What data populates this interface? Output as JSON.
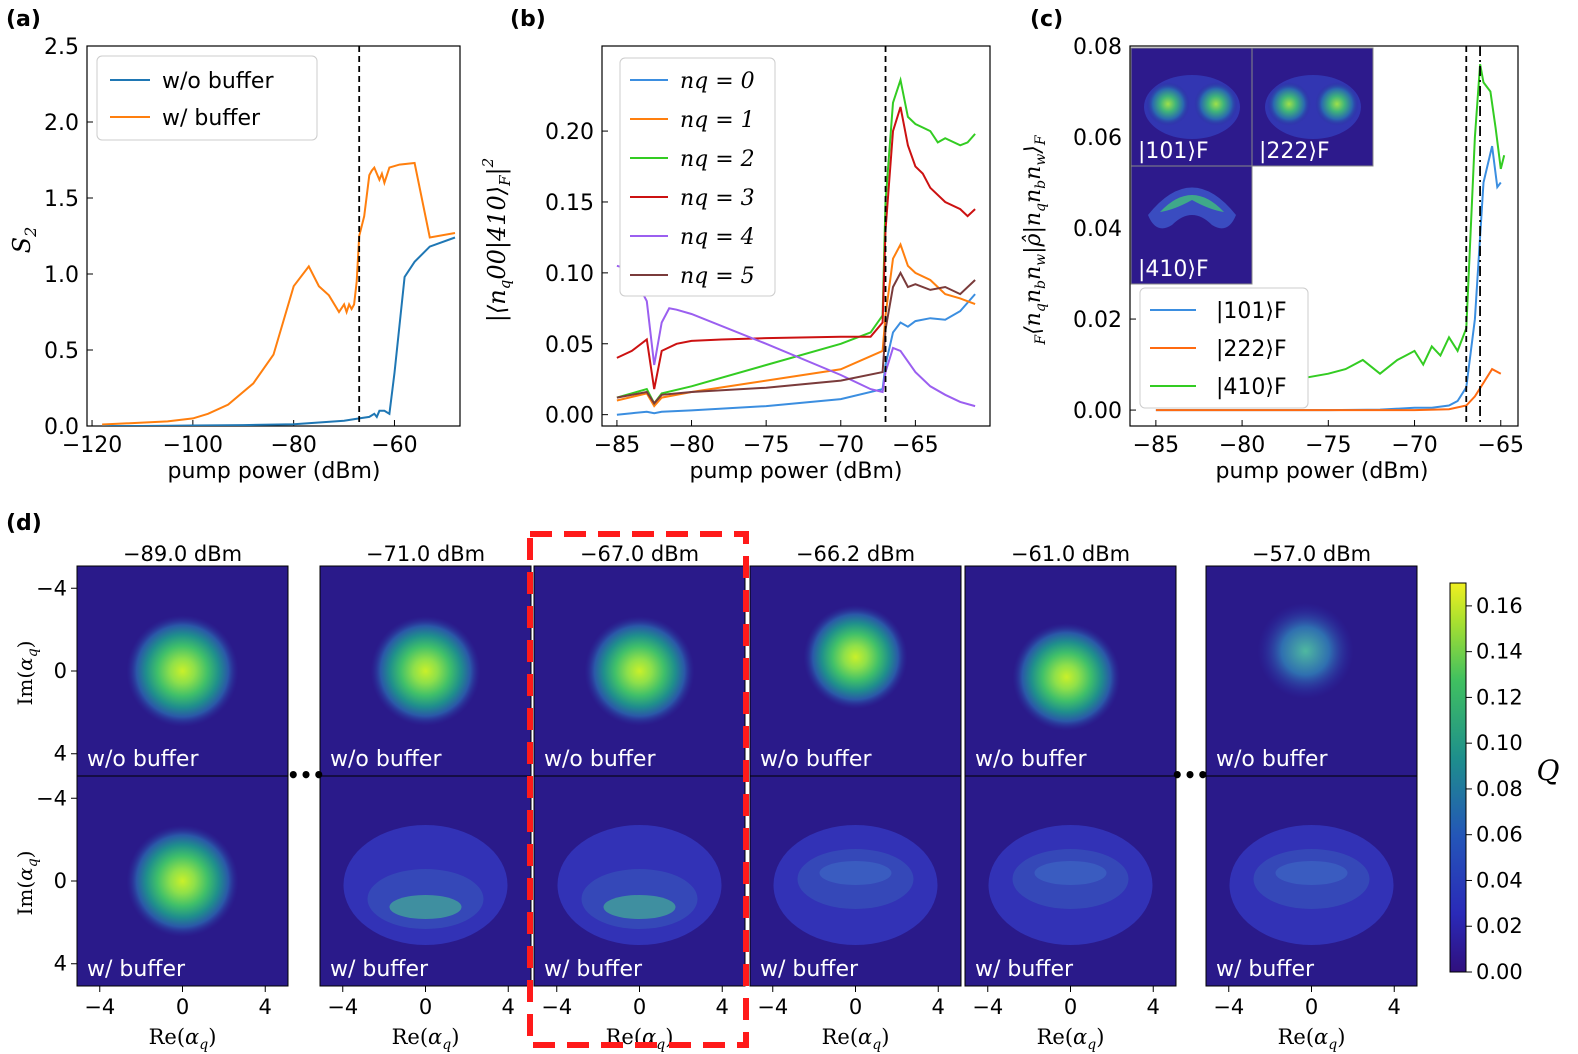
{
  "labels": {
    "a": "(a)",
    "b": "(b)",
    "c": "(c)",
    "d": "(d)"
  },
  "colors": {
    "blue": "#1f77b4",
    "orange": "#ff7f0e",
    "green": "#2ca02c",
    "red": "#d62728",
    "purple": "#9467bd",
    "brown": "#8c564b",
    "blue_c": "#3b8ee0",
    "orange_c": "#ff6a10",
    "green_c": "#33cc22",
    "green_b": "#33cc22",
    "blue_b": "#3b8ee0",
    "red_b": "#cc1111",
    "purple_b": "#9b5ff0",
    "brown_b": "#7a3b3b"
  },
  "chart_data": [
    {
      "id": "a",
      "type": "line",
      "xlabel": "pump power (dBm)",
      "ylabel": "S2",
      "xlim": [
        -121,
        -47
      ],
      "ylim": [
        0,
        2.5
      ],
      "xticks": [
        -120,
        -100,
        -80,
        -60
      ],
      "xticklabels": [
        "−120",
        "−100",
        "−80",
        "−60"
      ],
      "yticks": [
        0,
        0.5,
        1.0,
        1.5,
        2.0,
        2.5
      ],
      "yticklabels": [
        "0.0",
        "0.5",
        "1.0",
        "1.5",
        "2.0",
        "2.5"
      ],
      "vline": -67,
      "series": [
        {
          "name": "w/o buffer",
          "color": "blue",
          "x": [
            -118,
            -110,
            -100,
            -90,
            -80,
            -70,
            -67,
            -65,
            -64,
            -63.5,
            -63,
            -62,
            -61,
            -60,
            -58,
            -56,
            -53,
            -48
          ],
          "y": [
            0,
            0,
            0.003,
            0.006,
            0.012,
            0.035,
            0.05,
            0.06,
            0.08,
            0.06,
            0.1,
            0.1,
            0.08,
            0.35,
            0.98,
            1.08,
            1.18,
            1.24
          ]
        },
        {
          "name": "w/ buffer",
          "color": "orange",
          "x": [
            -118,
            -105,
            -100,
            -97,
            -93,
            -88,
            -84,
            -80,
            -77,
            -75,
            -73,
            -71,
            -70,
            -69.5,
            -69,
            -68.5,
            -68,
            -67.5,
            -67,
            -66,
            -65,
            -64.5,
            -64,
            -63,
            -62.5,
            -62,
            -61.5,
            -61,
            -59,
            -56,
            -53,
            -48
          ],
          "y": [
            0.01,
            0.03,
            0.05,
            0.08,
            0.14,
            0.28,
            0.47,
            0.92,
            1.05,
            0.92,
            0.86,
            0.75,
            0.8,
            0.75,
            0.8,
            0.77,
            0.8,
            0.95,
            1.25,
            1.38,
            1.65,
            1.68,
            1.7,
            1.62,
            1.66,
            1.6,
            1.65,
            1.7,
            1.72,
            1.73,
            1.24,
            1.27
          ]
        }
      ],
      "legend": [
        "w/o buffer",
        "w/ buffer"
      ]
    },
    {
      "id": "b",
      "type": "line",
      "xlabel": "pump power (dBm)",
      "ylabel": "|⟨nq00|410⟩F|²",
      "xlim": [
        -86,
        -60
      ],
      "ylim": [
        -0.008,
        0.26
      ],
      "xticks": [
        -85,
        -80,
        -75,
        -70,
        -65
      ],
      "xticklabels": [
        "−85",
        "−80",
        "−75",
        "−70",
        "−65"
      ],
      "yticks": [
        0,
        0.05,
        0.1,
        0.15,
        0.2
      ],
      "yticklabels": [
        "0.00",
        "0.05",
        "0.10",
        "0.15",
        "0.20"
      ],
      "vline": -67,
      "series": [
        {
          "name": "nq = 0",
          "color": "blue_b",
          "x": [
            -85,
            -84,
            -83,
            -82.5,
            -82,
            -80,
            -75,
            -70,
            -67.2,
            -67,
            -66.5,
            -66,
            -65.5,
            -65,
            -64,
            -63,
            -62,
            -61
          ],
          "y": [
            0,
            0.001,
            0.002,
            0.001,
            0.002,
            0.003,
            0.006,
            0.011,
            0.018,
            0.035,
            0.058,
            0.065,
            0.062,
            0.066,
            0.068,
            0.067,
            0.073,
            0.085
          ]
        },
        {
          "name": "nq = 1",
          "color": "orange",
          "x": [
            -85,
            -83,
            -82.5,
            -82,
            -80,
            -75,
            -70,
            -67.2,
            -67,
            -66.5,
            -66,
            -65.5,
            -65,
            -64,
            -63,
            -62,
            -61
          ],
          "y": [
            0.01,
            0.015,
            0.006,
            0.012,
            0.016,
            0.024,
            0.032,
            0.045,
            0.07,
            0.11,
            0.12,
            0.105,
            0.1,
            0.095,
            0.085,
            0.082,
            0.078
          ]
        },
        {
          "name": "nq = 2",
          "color": "green_b",
          "x": [
            -85,
            -83,
            -82.5,
            -82,
            -80,
            -75,
            -70,
            -68,
            -67.2,
            -67,
            -66.5,
            -66,
            -65.5,
            -65,
            -64,
            -63.5,
            -63,
            -62,
            -61.5,
            -61
          ],
          "y": [
            0.012,
            0.018,
            0.008,
            0.015,
            0.02,
            0.035,
            0.05,
            0.058,
            0.07,
            0.15,
            0.22,
            0.236,
            0.21,
            0.205,
            0.2,
            0.192,
            0.195,
            0.19,
            0.192,
            0.198
          ]
        },
        {
          "name": "nq = 3",
          "color": "red_b",
          "x": [
            -85,
            -84,
            -83,
            -82.5,
            -82,
            -81,
            -80,
            -78,
            -75,
            -70,
            -68,
            -67.2,
            -67,
            -66.5,
            -66,
            -65.5,
            -65,
            -64.5,
            -64,
            -63,
            -62,
            -61.5,
            -61
          ],
          "y": [
            0.04,
            0.045,
            0.053,
            0.018,
            0.045,
            0.05,
            0.052,
            0.053,
            0.054,
            0.055,
            0.055,
            0.065,
            0.13,
            0.2,
            0.217,
            0.19,
            0.175,
            0.17,
            0.16,
            0.15,
            0.145,
            0.14,
            0.145
          ]
        },
        {
          "name": "nq = 4",
          "color": "purple_b",
          "x": [
            -85,
            -84,
            -83.5,
            -83,
            -82.5,
            -82,
            -81.5,
            -81,
            -80,
            -75,
            -70,
            -68,
            -67.2,
            -67,
            -66.5,
            -66,
            -65,
            -64,
            -63,
            -62,
            -61
          ],
          "y": [
            0.105,
            0.102,
            0.09,
            0.08,
            0.035,
            0.065,
            0.075,
            0.074,
            0.071,
            0.05,
            0.028,
            0.018,
            0.016,
            0.03,
            0.047,
            0.045,
            0.03,
            0.02,
            0.014,
            0.009,
            0.006
          ]
        },
        {
          "name": "nq = 5",
          "color": "brown_b",
          "x": [
            -85,
            -83,
            -82.5,
            -82,
            -80,
            -75,
            -70,
            -67.2,
            -67,
            -66.5,
            -66,
            -65.5,
            -65,
            -64,
            -63,
            -62,
            -61
          ],
          "y": [
            0.012,
            0.016,
            0.008,
            0.014,
            0.016,
            0.019,
            0.024,
            0.03,
            0.06,
            0.09,
            0.1,
            0.09,
            0.092,
            0.088,
            0.09,
            0.085,
            0.095
          ]
        }
      ],
      "legend": [
        "nq = 0",
        "nq = 1",
        "nq = 2",
        "nq = 3",
        "nq = 4",
        "nq = 5"
      ]
    },
    {
      "id": "c",
      "type": "line",
      "xlabel": "pump power (dBm)",
      "ylabel": "F⟨nqnbnw|ρ̂|nqnbnw⟩F",
      "xlim": [
        -86.5,
        -64
      ],
      "ylim": [
        -0.0035,
        0.08
      ],
      "xticks": [
        -85,
        -80,
        -75,
        -70,
        -65
      ],
      "xticklabels": [
        "−85",
        "−80",
        "−75",
        "−70",
        "−65"
      ],
      "yticks": [
        0,
        0.02,
        0.04,
        0.06,
        0.08
      ],
      "yticklabels": [
        "0.00",
        "0.02",
        "0.04",
        "0.06",
        "0.08"
      ],
      "vline": -67,
      "vline2": -66.2,
      "series": [
        {
          "name": "|101⟩F",
          "color": "blue_c",
          "x": [
            -85,
            -80,
            -75,
            -72,
            -70,
            -69,
            -68,
            -67.5,
            -67,
            -66.5,
            -66,
            -65.5,
            -65.2,
            -65
          ],
          "y": [
            0,
            0,
            0,
            0.0001,
            0.0005,
            0.0005,
            0.001,
            0.002,
            0.005,
            0.02,
            0.05,
            0.058,
            0.049,
            0.05
          ]
        },
        {
          "name": "|222⟩F",
          "color": "orange_c",
          "x": [
            -85,
            -80,
            -75,
            -70,
            -68,
            -67,
            -66.5,
            -66,
            -65.5,
            -65
          ],
          "y": [
            0,
            0,
            0,
            0,
            0.0002,
            0.001,
            0.003,
            0.006,
            0.009,
            0.008
          ]
        },
        {
          "name": "|410⟩F",
          "color": "green_c",
          "x": [
            -85,
            -82,
            -80,
            -78,
            -75,
            -74,
            -73,
            -72,
            -71,
            -70.5,
            -70,
            -69.5,
            -69,
            -68.5,
            -68,
            -67.5,
            -67,
            -66.5,
            -66.2,
            -66,
            -65.6,
            -65.3,
            -65,
            -64.8
          ],
          "y": [
            0.003,
            0.004,
            0.005,
            0.006,
            0.008,
            0.009,
            0.011,
            0.008,
            0.011,
            0.012,
            0.013,
            0.01,
            0.014,
            0.012,
            0.016,
            0.013,
            0.018,
            0.06,
            0.076,
            0.072,
            0.07,
            0.062,
            0.053,
            0.056
          ]
        }
      ],
      "legend": [
        "|101⟩F",
        "|222⟩F",
        "|410⟩F"
      ],
      "insets": [
        "|101⟩F",
        "|222⟩F",
        "|410⟩F"
      ]
    },
    {
      "id": "d",
      "type": "heatmap",
      "titles": [
        "−89.0 dBm",
        "−71.0 dBm",
        "−67.0 dBm",
        "−66.2 dBm",
        "−61.0 dBm",
        "−57.0 dBm"
      ],
      "row_labels": [
        "w/o buffer",
        "w/ buffer"
      ],
      "xlabel": "Re(αq)",
      "ylabel": "Im(αq)",
      "ticks": [
        -4,
        0,
        4
      ],
      "ticklabels": [
        "−4",
        "0",
        "4"
      ],
      "colorbar": {
        "label": "Q",
        "min": 0,
        "max": 0.17,
        "ticks": [
          0,
          0.02,
          0.04,
          0.06,
          0.08,
          0.1,
          0.12,
          0.14,
          0.16
        ],
        "ticklabels": [
          "0.00",
          "0.02",
          "0.04",
          "0.06",
          "0.08",
          "0.10",
          "0.12",
          "0.14",
          "0.16"
        ]
      },
      "ellipsis": "•••"
    }
  ]
}
